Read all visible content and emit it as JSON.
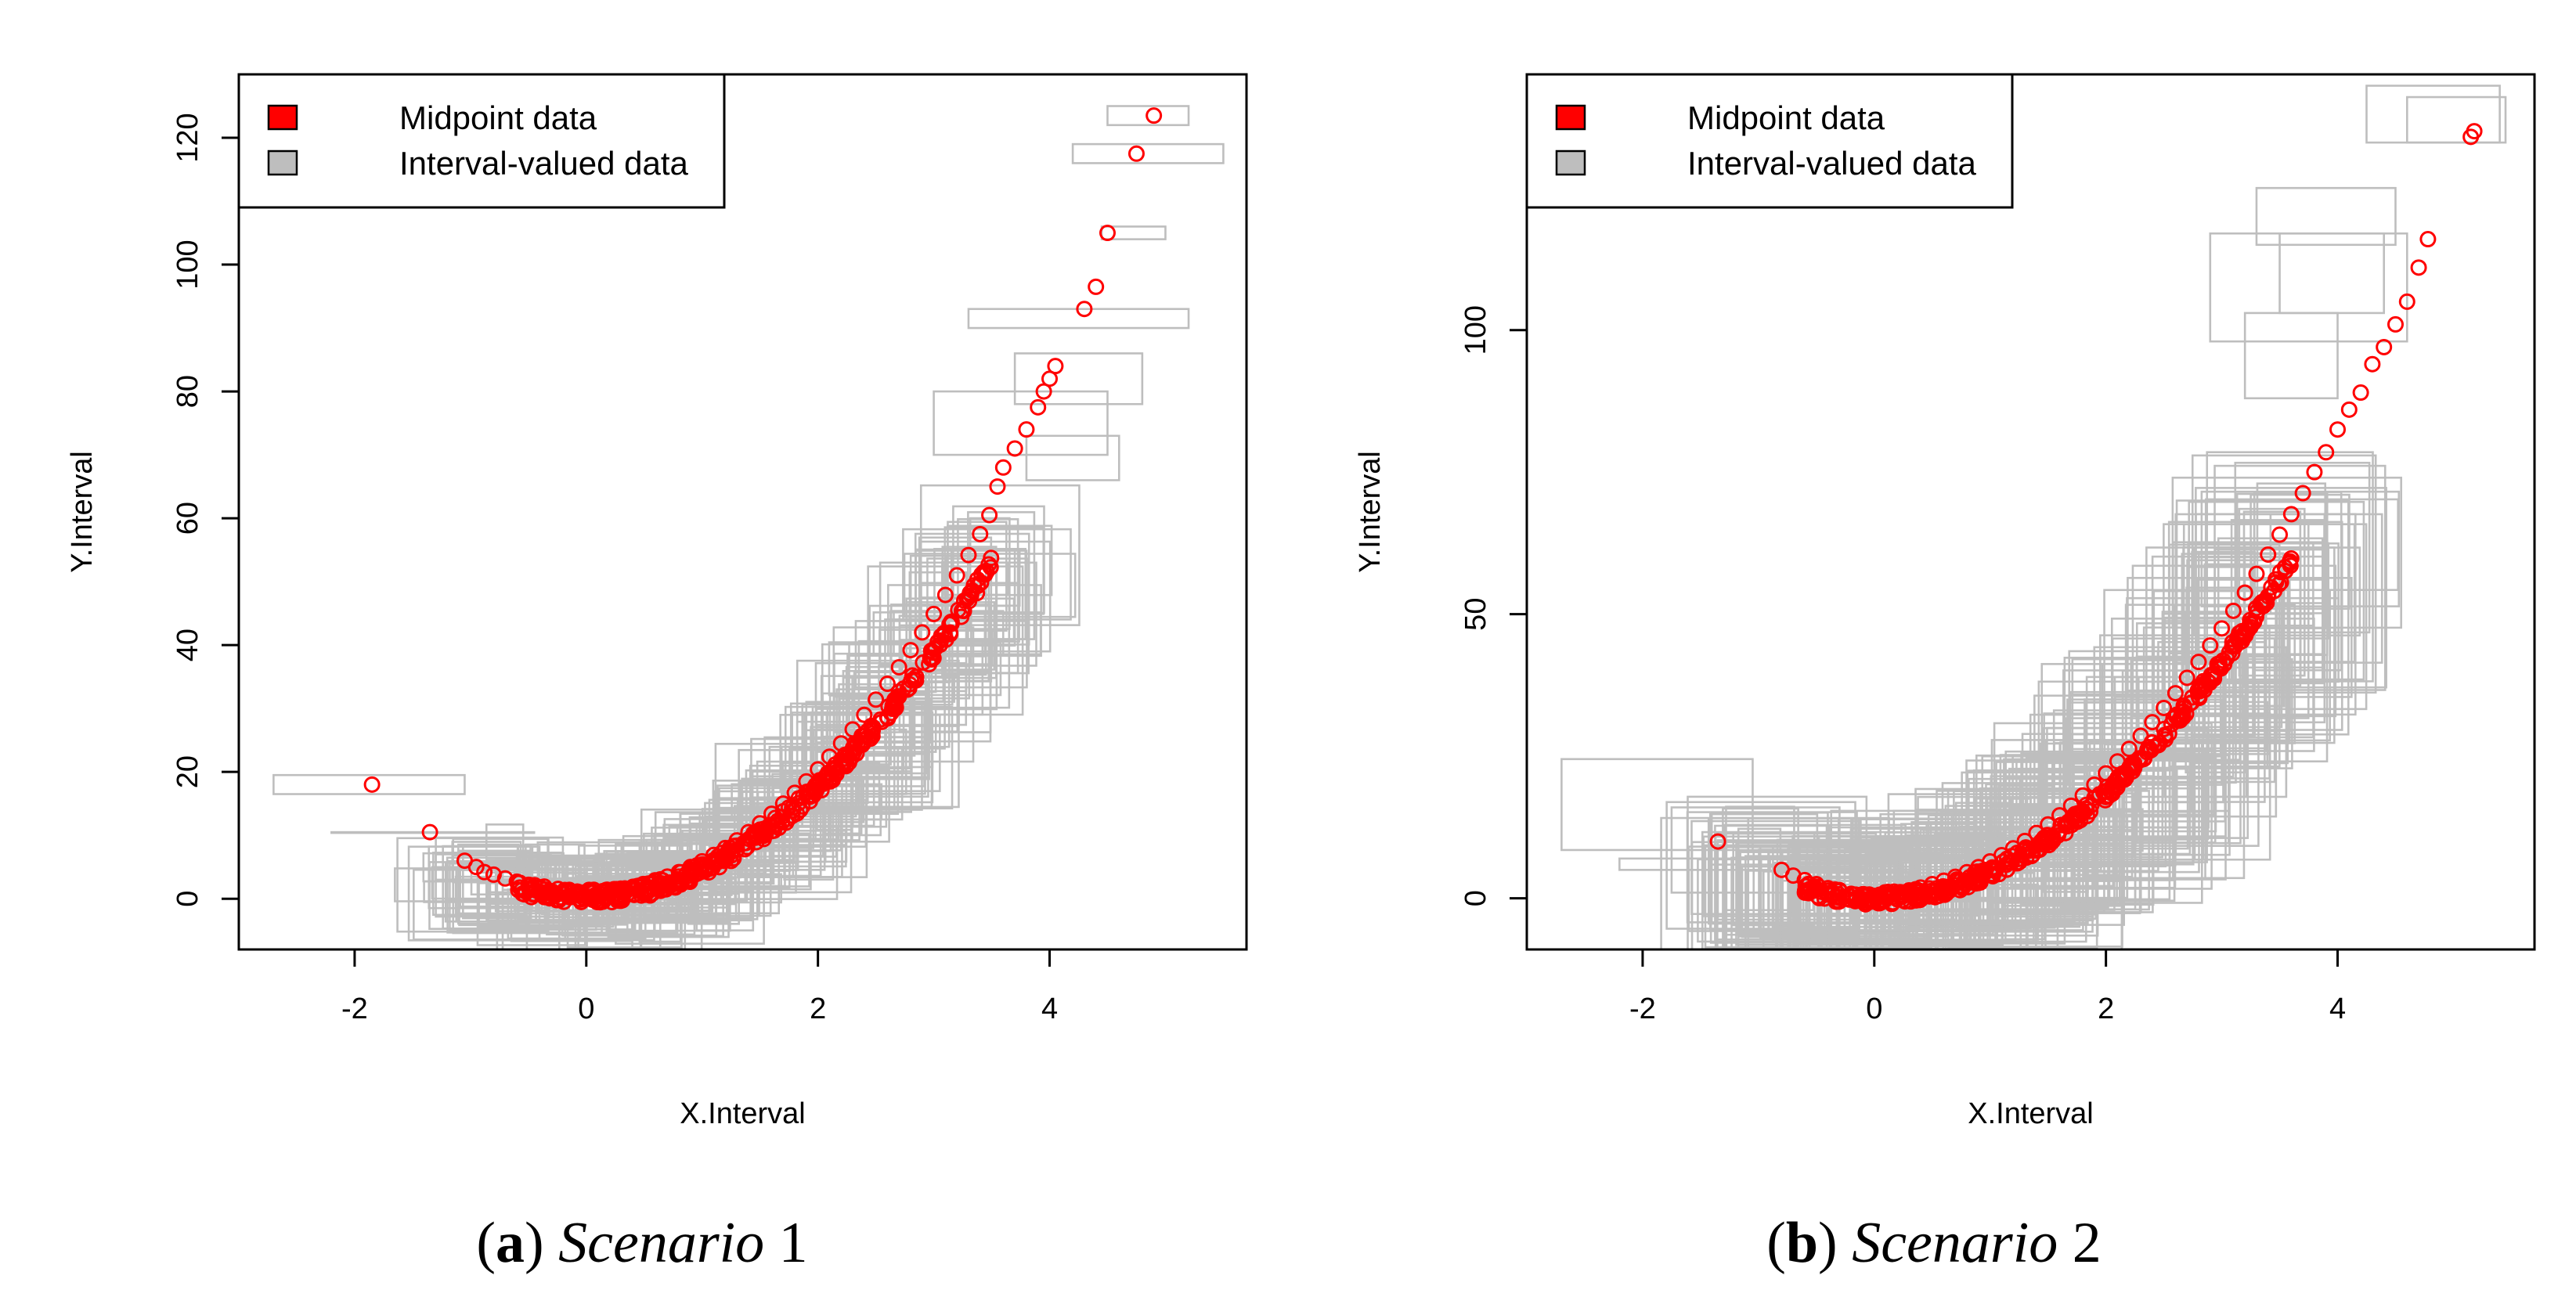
{
  "chart_data": [
    {
      "type": "scatter",
      "subtype": "interval-valued scatter",
      "caption_letter": "a",
      "caption_text": "Scenario",
      "caption_number": "1",
      "xlabel": "X.Interval",
      "ylabel": "Y.Interval",
      "xlim": [
        -3.0,
        5.7
      ],
      "ylim": [
        -8,
        130
      ],
      "xticks": [
        -2,
        0,
        2,
        4
      ],
      "yticks": [
        0,
        20,
        40,
        60,
        80,
        100,
        120
      ],
      "legend_position": "top-left",
      "legend": [
        {
          "label": "Midpoint data",
          "color": "#ff0000"
        },
        {
          "label": "Interval-valued data",
          "color": "#bebebe"
        }
      ],
      "series": [
        {
          "name": "Midpoint data",
          "color": "#ff0000",
          "points": [
            [
              -1.85,
              18
            ],
            [
              -1.35,
              10.5
            ],
            [
              -1.05,
              6
            ],
            [
              -0.95,
              5
            ],
            [
              -0.88,
              4.2
            ],
            [
              -0.8,
              3.8
            ],
            [
              -0.7,
              3.2
            ],
            [
              -0.6,
              2.7
            ],
            [
              -0.5,
              2.2
            ],
            [
              -0.4,
              1.8
            ],
            [
              -0.3,
              1.2
            ],
            [
              -0.2,
              0.8
            ],
            [
              -0.1,
              0.5
            ],
            [
              0.0,
              0.3
            ],
            [
              0.1,
              0.5
            ],
            [
              0.2,
              0.9
            ],
            [
              0.3,
              1.3
            ],
            [
              0.4,
              1.8
            ],
            [
              0.5,
              2.3
            ],
            [
              0.6,
              2.8
            ],
            [
              0.7,
              3.5
            ],
            [
              0.8,
              4.2
            ],
            [
              0.9,
              5.0
            ],
            [
              1.0,
              5.9
            ],
            [
              1.1,
              6.9
            ],
            [
              1.2,
              8.0
            ],
            [
              1.3,
              9.2
            ],
            [
              1.4,
              10.5
            ],
            [
              1.5,
              11.9
            ],
            [
              1.6,
              13.4
            ],
            [
              1.7,
              15.0
            ],
            [
              1.8,
              16.7
            ],
            [
              1.9,
              18.5
            ],
            [
              2.0,
              20.4
            ],
            [
              2.1,
              22.4
            ],
            [
              2.2,
              24.5
            ],
            [
              2.3,
              26.7
            ],
            [
              2.4,
              29.0
            ],
            [
              2.5,
              31.4
            ],
            [
              2.6,
              33.9
            ],
            [
              2.7,
              36.5
            ],
            [
              2.8,
              39.2
            ],
            [
              2.9,
              42.0
            ],
            [
              3.0,
              44.9
            ],
            [
              3.1,
              47.9
            ],
            [
              3.2,
              51.0
            ],
            [
              3.3,
              54.2
            ],
            [
              3.4,
              57.5
            ],
            [
              3.48,
              60.5
            ],
            [
              3.55,
              65
            ],
            [
              3.6,
              68
            ],
            [
              3.7,
              71
            ],
            [
              3.8,
              74
            ],
            [
              3.9,
              77.5
            ],
            [
              3.95,
              80
            ],
            [
              4.0,
              82
            ],
            [
              4.05,
              84
            ],
            [
              4.3,
              93
            ],
            [
              4.4,
              96.5
            ],
            [
              4.5,
              105
            ],
            [
              4.75,
              117.5
            ],
            [
              4.9,
              123.5
            ]
          ]
        },
        {
          "name": "Interval-valued data",
          "color": "#bebebe",
          "boxes": [
            [
              -2.7,
              -1.05,
              16.5,
              19.5
            ],
            [
              -2.2,
              -0.45,
              10.5,
              10.5
            ],
            [
              -1.3,
              -0.6,
              3,
              7
            ],
            [
              3.3,
              5.2,
              90,
              93
            ],
            [
              3.7,
              4.8,
              78,
              86
            ],
            [
              3.0,
              4.5,
              70,
              80
            ],
            [
              4.2,
              5.5,
              116,
              119
            ],
            [
              4.5,
              5.2,
              122,
              125
            ],
            [
              4.45,
              5.0,
              104,
              106
            ],
            [
              3.8,
              4.6,
              66,
              73
            ]
          ],
          "box_count_generated": 260
        }
      ]
    },
    {
      "type": "scatter",
      "subtype": "interval-valued scatter",
      "caption_letter": "b",
      "caption_text": "Scenario",
      "caption_number": "2",
      "xlabel": "X.Interval",
      "ylabel": "Y.Interval",
      "xlim": [
        -3.0,
        5.7
      ],
      "ylim": [
        -9,
        145
      ],
      "xticks": [
        -2,
        0,
        2,
        4
      ],
      "yticks": [
        0,
        50,
        100
      ],
      "legend_position": "top-left",
      "legend": [
        {
          "label": "Midpoint data",
          "color": "#ff0000"
        },
        {
          "label": "Interval-valued data",
          "color": "#bebebe"
        }
      ],
      "series": [
        {
          "name": "Midpoint data",
          "color": "#ff0000",
          "points": [
            [
              -1.35,
              10
            ],
            [
              -0.8,
              5
            ],
            [
              -0.7,
              4
            ],
            [
              -0.6,
              3.2
            ],
            [
              -0.5,
              2.5
            ],
            [
              -0.4,
              1.8
            ],
            [
              -0.3,
              1.3
            ],
            [
              -0.2,
              0.8
            ],
            [
              -0.1,
              0.4
            ],
            [
              0.0,
              0.2
            ],
            [
              0.1,
              0.5
            ],
            [
              0.2,
              0.9
            ],
            [
              0.3,
              1.4
            ],
            [
              0.4,
              1.9
            ],
            [
              0.5,
              2.5
            ],
            [
              0.6,
              3.1
            ],
            [
              0.7,
              3.8
            ],
            [
              0.8,
              4.6
            ],
            [
              0.9,
              5.5
            ],
            [
              1.0,
              6.5
            ],
            [
              1.1,
              7.6
            ],
            [
              1.2,
              8.8
            ],
            [
              1.3,
              10.1
            ],
            [
              1.4,
              11.5
            ],
            [
              1.5,
              13.0
            ],
            [
              1.6,
              14.6
            ],
            [
              1.7,
              16.3
            ],
            [
              1.8,
              18.1
            ],
            [
              1.9,
              20.0
            ],
            [
              2.0,
              22.0
            ],
            [
              2.1,
              24.1
            ],
            [
              2.2,
              26.3
            ],
            [
              2.3,
              28.6
            ],
            [
              2.4,
              31.0
            ],
            [
              2.5,
              33.5
            ],
            [
              2.6,
              36.1
            ],
            [
              2.7,
              38.8
            ],
            [
              2.8,
              41.6
            ],
            [
              2.9,
              44.5
            ],
            [
              3.0,
              47.5
            ],
            [
              3.1,
              50.6
            ],
            [
              3.2,
              53.8
            ],
            [
              3.3,
              57.1
            ],
            [
              3.4,
              60.5
            ],
            [
              3.5,
              64.0
            ],
            [
              3.6,
              67.6
            ],
            [
              3.7,
              71.3
            ],
            [
              3.8,
              75.0
            ],
            [
              3.9,
              78.5
            ],
            [
              4.0,
              82.5
            ],
            [
              4.1,
              86
            ],
            [
              4.2,
              89
            ],
            [
              4.3,
              94
            ],
            [
              4.4,
              97
            ],
            [
              4.5,
              101
            ],
            [
              4.6,
              105
            ],
            [
              4.7,
              111
            ],
            [
              4.78,
              116
            ],
            [
              5.15,
              134
            ],
            [
              5.18,
              135
            ]
          ]
        },
        {
          "name": "Interval-valued data",
          "color": "#bebebe",
          "boxes": [
            [
              -2.7,
              -1.05,
              8.5,
              24.5
            ],
            [
              -2.2,
              -0.9,
              5,
              7
            ],
            [
              -1.75,
              -0.3,
              1,
              16
            ],
            [
              4.25,
              5.4,
              133,
              143
            ],
            [
              4.6,
              5.45,
              133,
              141
            ],
            [
              3.3,
              4.5,
              115,
              125
            ],
            [
              2.9,
              4.6,
              98,
              117
            ],
            [
              3.5,
              4.4,
              103,
              117
            ],
            [
              3.2,
              4.0,
              88,
              103
            ]
          ],
          "box_count_generated": 300
        }
      ]
    }
  ]
}
